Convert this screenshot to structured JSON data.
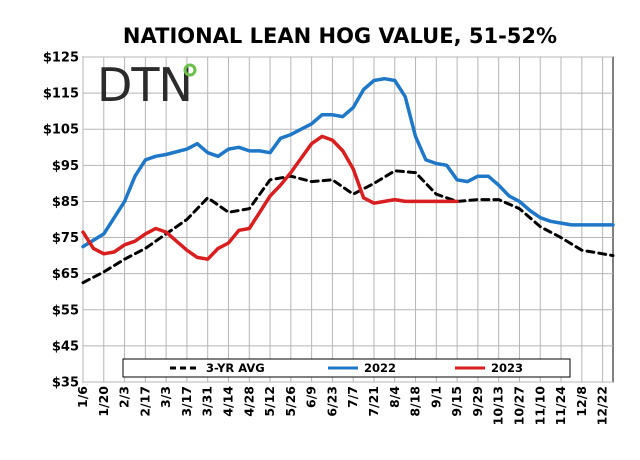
{
  "chart_data": {
    "type": "line",
    "title": "NATIONAL LEAN HOG VALUE, 51-52%",
    "logo": "DTN",
    "y_ticks": [
      "$125",
      "$115",
      "$105",
      "$95",
      "$85",
      "$75",
      "$65",
      "$55",
      "$45",
      "$35"
    ],
    "ylim": [
      35,
      125
    ],
    "x_ticks": [
      "1/6",
      "1/20",
      "2/3",
      "2/17",
      "3/3",
      "3/17",
      "3/31",
      "4/14",
      "4/28",
      "5/12",
      "5/26",
      "6/9",
      "6/23",
      "7/7",
      "7/21",
      "8/4",
      "8/18",
      "9/1",
      "9/15",
      "9/29",
      "10/13",
      "10/27",
      "11/10",
      "11/24",
      "12/8",
      "12/22"
    ],
    "grid": true,
    "legend_placement": "bottom",
    "colors": {
      "avg": "#000000",
      "y2022": "#1f77c8",
      "y2023": "#d81e1e"
    },
    "series": [
      {
        "name": "3-YR AVG",
        "style": "dashed",
        "x_week": [
          0,
          2,
          4,
          6,
          8,
          10,
          12,
          14,
          16,
          17,
          18,
          20,
          22,
          24,
          26,
          28,
          30,
          32,
          34,
          36,
          38,
          40,
          42,
          44,
          46,
          48,
          50,
          51
        ],
        "values": [
          62.5,
          65.5,
          69,
          72,
          76,
          80,
          86,
          82,
          83,
          87,
          91,
          92,
          90.5,
          91,
          87,
          90,
          93.5,
          93,
          87,
          85,
          85.5,
          85.5,
          83,
          78,
          75,
          71.5,
          70.5,
          70
        ]
      },
      {
        "name": "2022",
        "style": "solid",
        "x_week": [
          0,
          2,
          4,
          5,
          6,
          7,
          8,
          10,
          11,
          12,
          13,
          14,
          15,
          16,
          17,
          18,
          19,
          20,
          21,
          22,
          23,
          24,
          25,
          26,
          27,
          28,
          29,
          30,
          31,
          32,
          33,
          34,
          35,
          36,
          37,
          38,
          39,
          40,
          41,
          42,
          43,
          44,
          45,
          46,
          47,
          48,
          49,
          50,
          51
        ],
        "values": [
          72.5,
          76,
          85,
          92,
          96.5,
          97.5,
          98,
          99.5,
          101,
          98.5,
          97.5,
          99.5,
          100,
          99,
          99,
          98.5,
          102.5,
          103.5,
          105,
          106.5,
          109,
          109,
          108.5,
          111,
          116,
          118.5,
          119,
          118.5,
          114,
          103,
          96.5,
          95.5,
          95,
          91,
          90.5,
          92,
          92,
          89.5,
          86.5,
          85,
          82.5,
          80.5,
          79.5,
          79,
          78.5,
          78.5,
          78.5,
          78.5,
          78.5
        ]
      },
      {
        "name": "2023",
        "style": "solid",
        "x_week": [
          0,
          1,
          2,
          3,
          4,
          5,
          6,
          7,
          8,
          9,
          10,
          11,
          12,
          13,
          14,
          15,
          16,
          17,
          18,
          19,
          20,
          21,
          22,
          23,
          24,
          25,
          26,
          27,
          28,
          29,
          30,
          31,
          32,
          33,
          34,
          35,
          36
        ],
        "values": [
          76.5,
          72,
          70.5,
          71,
          73,
          74,
          76,
          77.5,
          76.5,
          74,
          71.5,
          69.5,
          69,
          72,
          73.5,
          77,
          77.5,
          82,
          86.5,
          89.5,
          93,
          97,
          101,
          103,
          102,
          99,
          94,
          86,
          84.5,
          85,
          85.5,
          85,
          85,
          85,
          85,
          85,
          85
        ]
      }
    ]
  }
}
